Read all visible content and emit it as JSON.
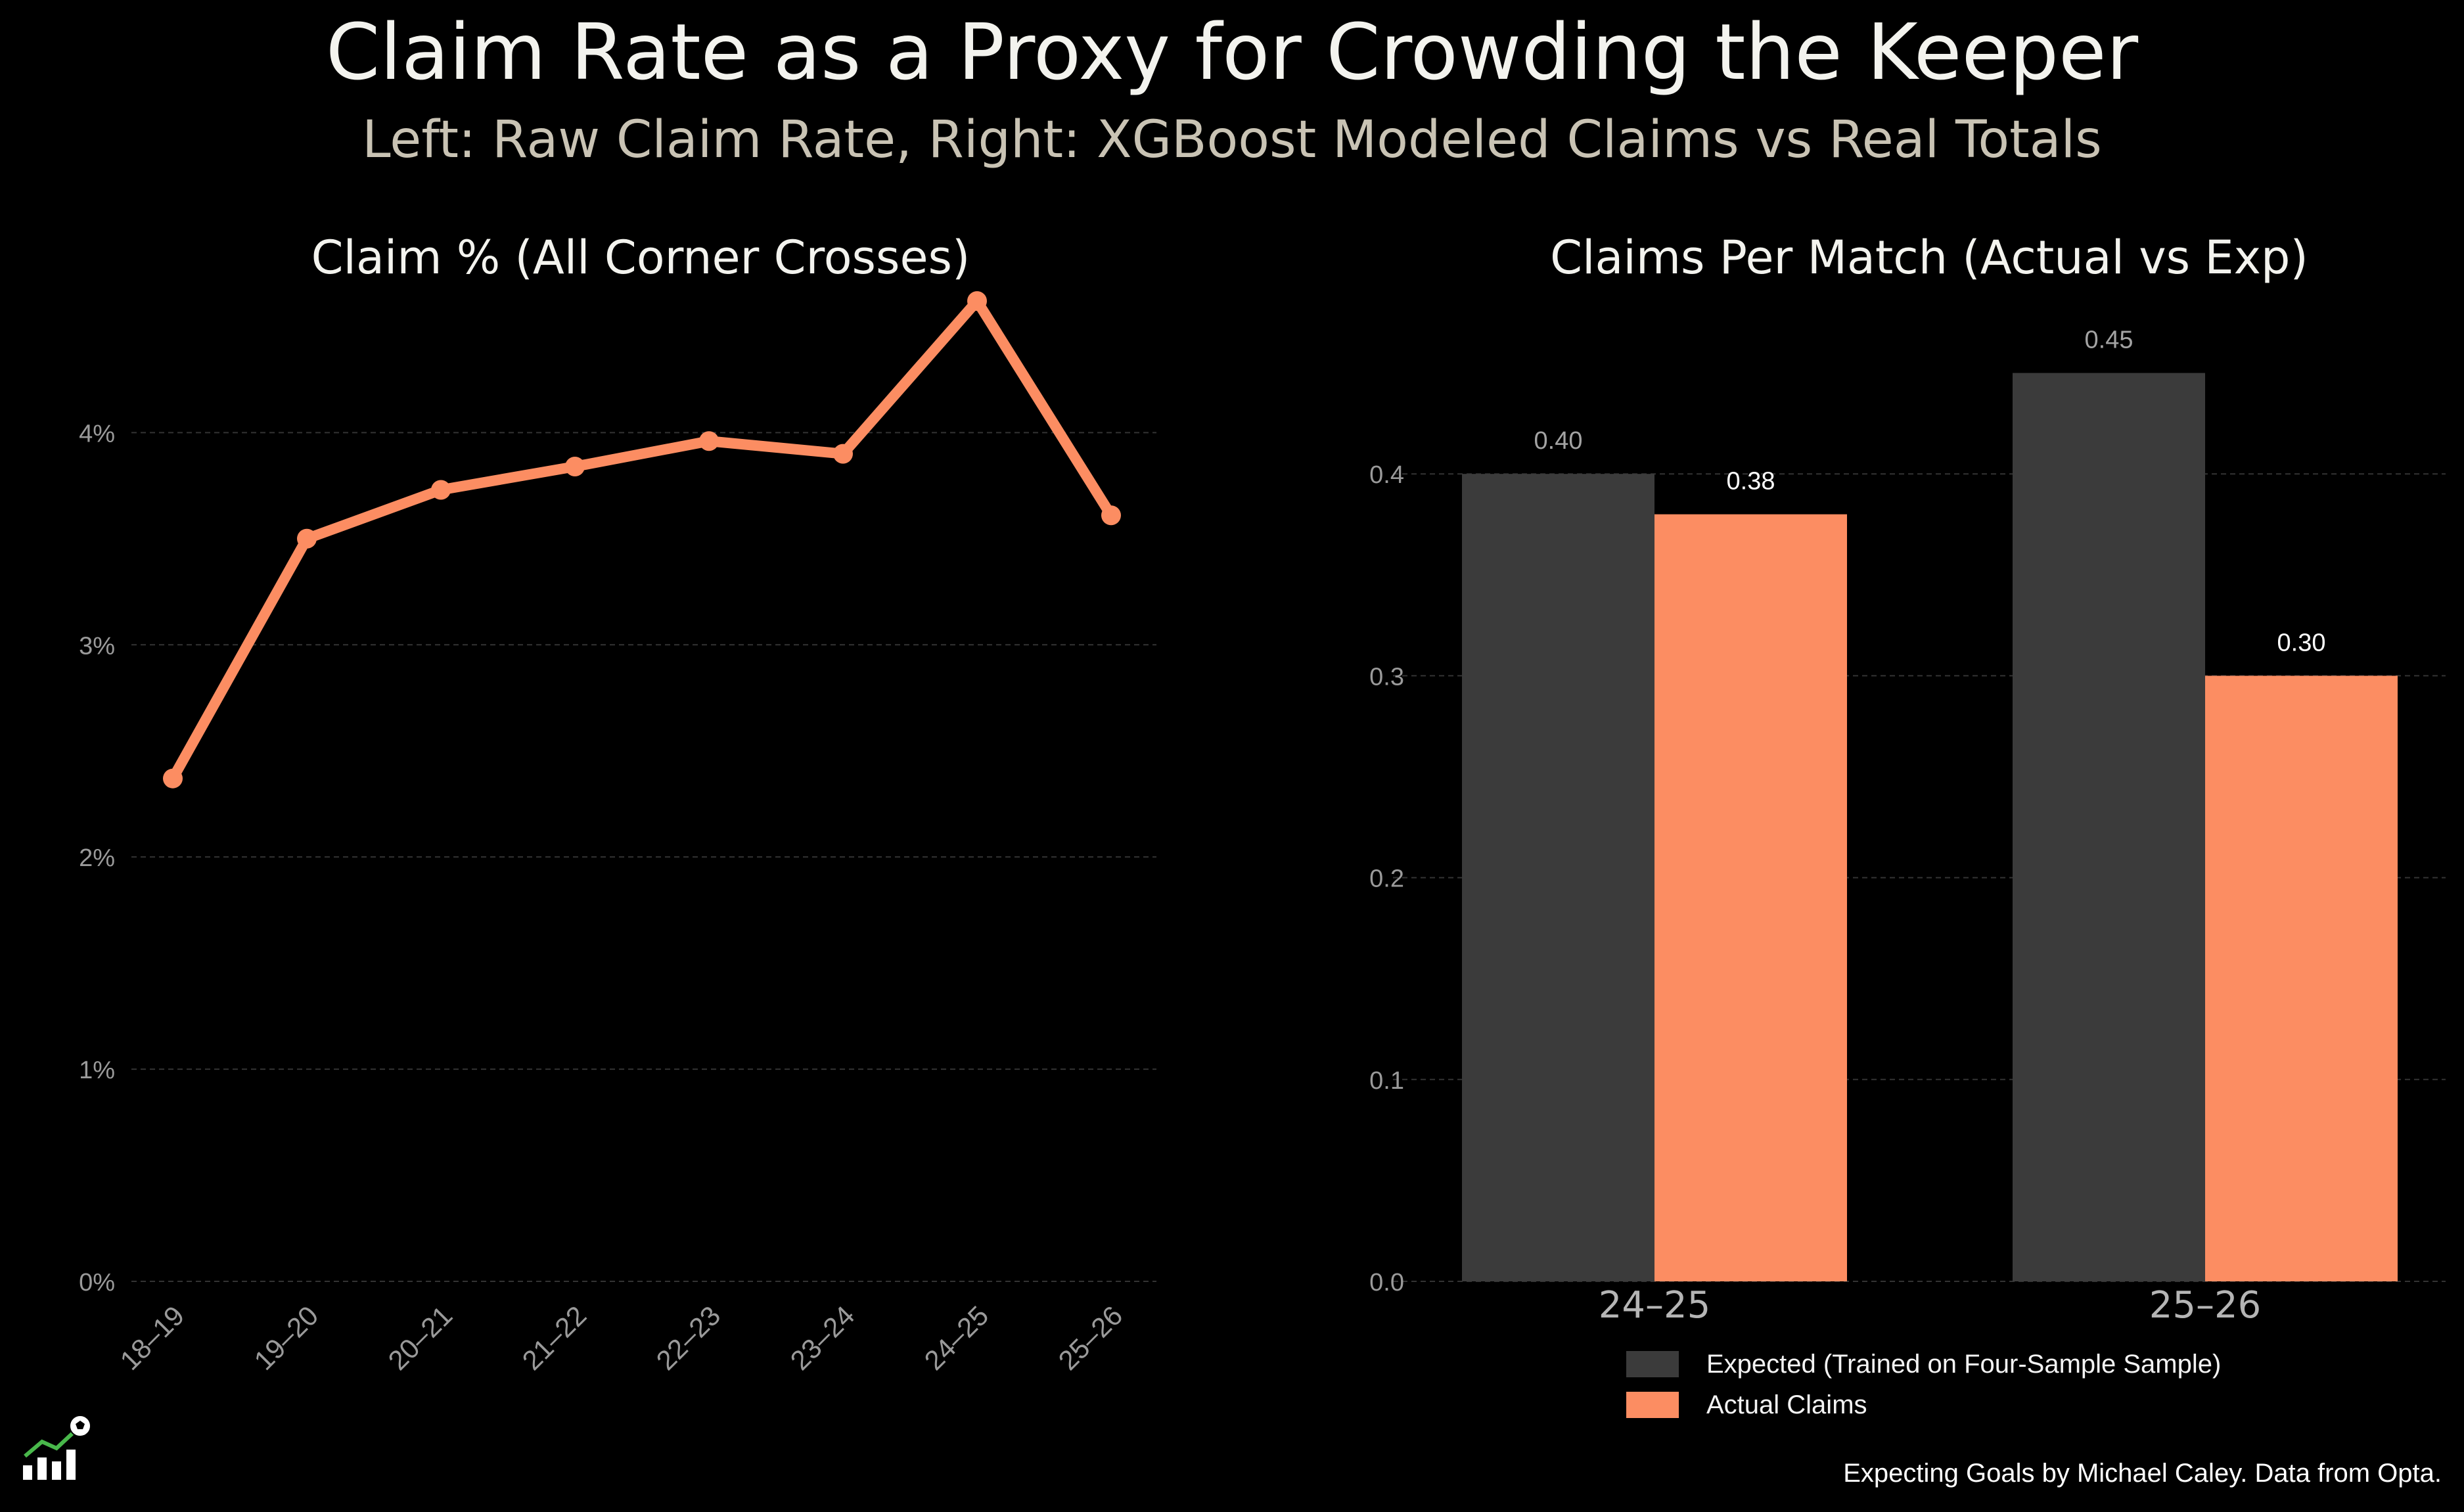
{
  "title": "Claim Rate as a Proxy for Crowding the Keeper",
  "subtitle": "Left: Raw Claim Rate, Right: XGBoost Modeled Claims vs Real Totals",
  "footer": "Expecting Goals by Michael Caley. Data from Opta.",
  "colors": {
    "background": "#000000",
    "accent": "#fc8d62",
    "expected": "#3b3b3b",
    "grid": "#333333",
    "tick": "#9a9a9a"
  },
  "chart_data": [
    {
      "type": "line",
      "title": "Claim % (All Corner Crosses)",
      "xlabel": "",
      "ylabel": "",
      "x": [
        "18–19",
        "19–20",
        "20–21",
        "21–22",
        "22–23",
        "23–24",
        "24–25",
        "25–26"
      ],
      "y": [
        2.37,
        3.5,
        3.73,
        3.84,
        3.96,
        3.9,
        4.62,
        3.61
      ],
      "ylim": [
        0,
        4.8
      ],
      "yticks": [
        0,
        1,
        2,
        3,
        4
      ],
      "ytick_labels": [
        "0%",
        "1%",
        "2%",
        "3%",
        "4%"
      ],
      "grid": true
    },
    {
      "type": "bar",
      "title": "Claims Per Match (Actual vs Exp)",
      "categories": [
        "24–25",
        "25–26"
      ],
      "series": [
        {
          "name": "Expected (Trained on Four-Sample Sample)",
          "values": [
            0.4,
            0.45
          ],
          "labels": [
            "0.40",
            "0.45"
          ]
        },
        {
          "name": "Actual Claims",
          "values": [
            0.38,
            0.3
          ],
          "labels": [
            "0.38",
            "0.30"
          ]
        }
      ],
      "ylim": [
        0,
        0.48
      ],
      "yticks": [
        0.0,
        0.1,
        0.2,
        0.3,
        0.4
      ],
      "ytick_labels": [
        "0.0",
        "0.1",
        "0.2",
        "0.3",
        "0.4"
      ],
      "grid": true,
      "legend": "bottom-center"
    }
  ]
}
